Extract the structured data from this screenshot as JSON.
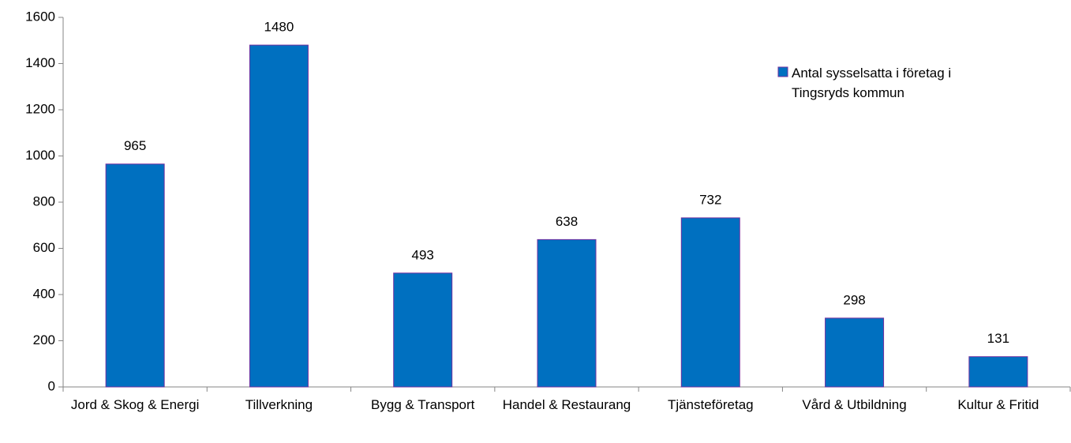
{
  "chart_data": {
    "type": "bar",
    "categories": [
      "Jord & Skog & Energi",
      "Tillverkning",
      "Bygg & Transport",
      "Handel & Restaurang",
      "Tjänsteföretag",
      "Vård & Utbildning",
      "Kultur & Fritid"
    ],
    "series": [
      {
        "name": "Antal sysselsatta i företag i Tingsryds kommun",
        "color": "#0070c0",
        "values": [
          965,
          1480,
          493,
          638,
          732,
          298,
          131
        ]
      }
    ],
    "ylim": [
      0,
      1600
    ],
    "yticks": [
      0,
      200,
      400,
      600,
      800,
      1000,
      1200,
      1400,
      1600
    ],
    "grid": false,
    "legend": "upper right",
    "data_labels": true
  }
}
